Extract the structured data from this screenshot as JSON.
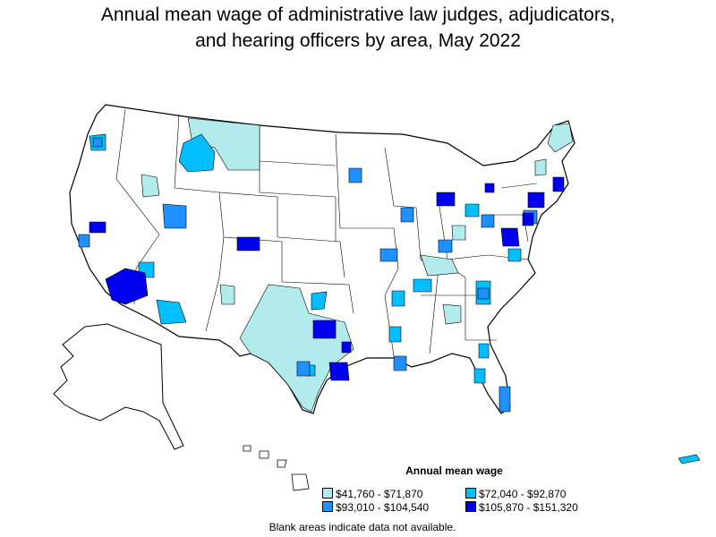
{
  "title_line1": "Annual mean wage of administrative law judges, adjudicators,",
  "title_line2": "and hearing officers by area, May 2022",
  "legend": {
    "title": "Annual mean wage",
    "items": [
      {
        "label": "$41,760 - $71,870",
        "color": "#b2ebeb"
      },
      {
        "label": "$72,040 - $92,870",
        "color": "#00bfff"
      },
      {
        "label": "$93,010 - $104,540",
        "color": "#1e90ff"
      },
      {
        "label": "$105,870 - $151,320",
        "color": "#0000ee"
      }
    ]
  },
  "note": "Blank areas indicate data not available."
}
